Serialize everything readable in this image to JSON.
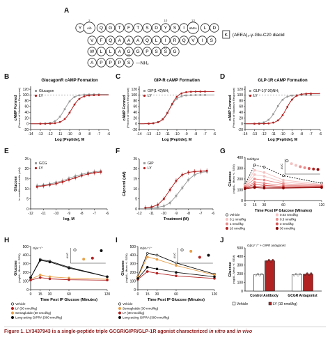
{
  "colors": {
    "red": "#b22222",
    "gray": "#9a9a9a",
    "orange": "#e8a04a",
    "pink1": "#f4c1c1",
    "pink2": "#e98a8a",
    "pink3": "#d65454",
    "darkred": "#8b0000",
    "black": "#111111",
    "green": "#5a8a3a"
  },
  "panels": {
    "A": {
      "letter": "A",
      "seq_row1": [
        "Y",
        "Aib",
        "Q",
        "G",
        "T",
        "F",
        "T",
        "S",
        "D",
        "Y",
        "S",
        "I",
        "αMeL",
        "L",
        "D"
      ],
      "seq_row2": [
        "S",
        "I",
        "V",
        "Q",
        "R",
        "I",
        "L",
        "Q",
        "A",
        "A",
        "A",
        "Q",
        "F",
        "V"
      ],
      "seq_row3": [
        "W",
        "L",
        "L",
        "A",
        "G",
        "G",
        "P",
        "S",
        "S",
        "G"
      ],
      "seq_row4": [
        "A",
        "P",
        "P",
        "P",
        "S"
      ],
      "lys_label": "K",
      "side_chain": "(AEEA)₂-γ-Glu-C20 diacid",
      "nh2": "NH₂",
      "positions": [
        "2",
        "10",
        "13",
        "20",
        "30",
        "39"
      ]
    },
    "B": {
      "letter": "B",
      "title": "GlucagonR cAMP Formation"
    },
    "C": {
      "letter": "C",
      "title": "GIP-R cAMP Formation"
    },
    "D": {
      "letter": "D",
      "title": "GLP-1R cAMP Formation"
    },
    "E": {
      "letter": "E"
    },
    "F": {
      "letter": "F"
    },
    "G": {
      "letter": "G",
      "inset_label": "Wildtype"
    },
    "H": {
      "letter": "H",
      "inset_label": "Gipr⁻/⁻"
    },
    "I": {
      "letter": "I",
      "inset_label": "Glp1r⁻/⁻"
    },
    "J": {
      "letter": "J",
      "inset_label": "Glp1r⁻/⁻ + GIPR antagonist"
    }
  },
  "legends": {
    "G": [
      "Vehicle",
      "0.03 nmol/kg",
      "0.1 nmol/kg",
      "0.3 nmol/kg",
      "1 nmol/kg",
      "3 nmol/kg",
      "10 nmol/kg",
      "30 nmol/kg"
    ],
    "H": [
      "Vehicle",
      "LY (30 nmol/kg)",
      "Semaglutide (30 nmol/kg)",
      "Long-acting GIPRA (300 nmol/kg)"
    ],
    "I": [
      "Vehicle",
      "Semaglutide (30 nmol/kg)",
      "LY (30 nmol/kg)",
      "Long-acting GIPRA (300 nmol/kg)"
    ],
    "J": [
      "Vehicle",
      "LY (10 nmol/kg)"
    ]
  },
  "caption": {
    "prefix": "Figure 1.",
    "text": "LY3437943 is a single-peptide triple GCGR/GIPR/GLP-1R agonist characterized",
    "in_vitro": "in vitro",
    "and": "and",
    "in_vivo": "in vivo"
  },
  "chart_data": [
    {
      "panel": "B",
      "type": "line",
      "title": "GlucagonR cAMP Formation",
      "xlabel": "Log [Peptide], M",
      "ylabel": "cAMP Formed",
      "ylabel2": "(Percent of Maximum Response)",
      "xlim": [
        -14,
        -6
      ],
      "ylim": [
        -20,
        130
      ],
      "xticks": [
        "-14",
        "-13",
        "-12",
        "-11",
        "-10",
        "-9",
        "-8",
        "-7",
        "-6"
      ],
      "yticks": [
        "-20",
        "0",
        "20",
        "40",
        "60",
        "80",
        "100",
        "120"
      ],
      "dashed_line": 100,
      "series": [
        {
          "name": "Glucagon",
          "color": "gray",
          "ec50": -10.5,
          "hill": 1.0,
          "top": 102
        },
        {
          "name": "LY",
          "color": "red",
          "ec50": -9.8,
          "hill": 1.0,
          "top": 100
        }
      ]
    },
    {
      "panel": "C",
      "type": "line",
      "title": "GIP-R cAMP Formation",
      "xlabel": "Log [Peptide], M",
      "ylabel": "cAMP Formed",
      "ylabel2": "(Percent of Maximum Response)",
      "xlim": [
        -14,
        -6
      ],
      "ylim": [
        -20,
        130
      ],
      "xticks": [
        "-14",
        "-13",
        "-12",
        "-11",
        "-10",
        "-9",
        "-8",
        "-7",
        "-6"
      ],
      "yticks": [
        "-20",
        "0",
        "20",
        "40",
        "60",
        "80",
        "100",
        "120"
      ],
      "dashed_line": 100,
      "series": [
        {
          "name": "GIP(1-42)NH₂",
          "color": "gray",
          "ec50": -10.8,
          "hill": 1.0,
          "top": 100
        },
        {
          "name": "LY",
          "color": "red",
          "ec50": -10.7,
          "hill": 1.0,
          "top": 112
        }
      ]
    },
    {
      "panel": "D",
      "type": "line",
      "title": "GLP-1R cAMP Formation",
      "xlabel": "Log [Peptide], M",
      "ylabel": "cAMP Formed",
      "ylabel2": "(Percent of Maximum Response)",
      "xlim": [
        -14,
        -6
      ],
      "ylim": [
        -20,
        130
      ],
      "xticks": [
        "-14",
        "-13",
        "-12",
        "-11",
        "-10",
        "-9",
        "-8",
        "-7",
        "-6"
      ],
      "yticks": [
        "-20",
        "0",
        "20",
        "40",
        "60",
        "80",
        "100",
        "120"
      ],
      "dashed_line": 100,
      "series": [
        {
          "name": "GLP-1(7-36)NH₂",
          "color": "gray",
          "ec50": -10.7,
          "hill": 1.0,
          "top": 100
        },
        {
          "name": "LY",
          "color": "red",
          "ec50": -9.6,
          "hill": 1.0,
          "top": 105
        }
      ]
    },
    {
      "panel": "E",
      "type": "line",
      "xlabel": "log, M",
      "ylabel": "Glucose",
      "ylabel2": "in conditioned media (mM)",
      "xlim": [
        -12,
        -6
      ],
      "ylim": [
        0,
        25
      ],
      "xticks": [
        "-12",
        "-11",
        "-10",
        "-9",
        "-8",
        "-7",
        "-6"
      ],
      "yticks": [
        "0",
        "5",
        "10",
        "15",
        "20",
        "25"
      ],
      "series": [
        {
          "name": "GCG",
          "color": "gray",
          "x": [
            -11.5,
            -11,
            -10.5,
            -10,
            -9.5,
            -9,
            -8.5,
            -8,
            -7.5,
            -7,
            -6.5
          ],
          "y": [
            11.5,
            11.8,
            12.4,
            13.2,
            14.0,
            15.2,
            16.3,
            17.2,
            18.0,
            18.5,
            18.8
          ]
        },
        {
          "name": "LY",
          "color": "red",
          "x": [
            -11.5,
            -11,
            -10.5,
            -10,
            -9.5,
            -9,
            -8.5,
            -8,
            -7.5,
            -7,
            -6.5
          ],
          "y": [
            11.0,
            11.5,
            12.0,
            12.6,
            13.4,
            14.5,
            15.5,
            16.6,
            17.4,
            18.0,
            18.4
          ]
        }
      ]
    },
    {
      "panel": "F",
      "type": "line",
      "xlabel": "Treatment (M)",
      "ylabel": "Glycerol (uM)",
      "xlim": [
        -12,
        -6
      ],
      "ylim": [
        0,
        25
      ],
      "xticks": [
        "-12",
        "-11",
        "-10",
        "-9",
        "-8",
        "-7",
        "-6"
      ],
      "yticks": [
        "0",
        "5",
        "10",
        "15",
        "20",
        "25"
      ],
      "series": [
        {
          "name": "GIP",
          "color": "gray",
          "x": [
            -11.5,
            -11,
            -10.5,
            -10,
            -9.5,
            -9,
            -8.5,
            -8,
            -7.5,
            -7,
            -6.5
          ],
          "y": [
            0.5,
            0.6,
            0.8,
            1.4,
            3.0,
            6.5,
            10.5,
            14.5,
            17.0,
            18.2,
            18.6
          ]
        },
        {
          "name": "LY",
          "color": "red",
          "x": [
            -11.5,
            -11,
            -10.5,
            -10,
            -9.5,
            -9,
            -8.5,
            -8,
            -7.5,
            -7,
            -6.5
          ],
          "y": [
            0.5,
            0.9,
            2.0,
            5.0,
            9.5,
            14.0,
            17.0,
            18.2,
            18.6,
            18.8,
            19.0
          ]
        }
      ]
    },
    {
      "panel": "G",
      "type": "line",
      "xlabel": "Time Post IP Glucose (Minutes)",
      "ylabel": "Glucose",
      "ylabel2": "(mg/dL, Mean +/- SEM)",
      "xlim": [
        0,
        120
      ],
      "ylim": [
        0,
        400
      ],
      "xticks": [
        "0",
        "15",
        "30",
        "60",
        "120"
      ],
      "yticks": [
        "0",
        "100",
        "200",
        "300",
        "400"
      ],
      "inset_ylabel": "AUC",
      "series": [
        {
          "name": "Vehicle",
          "color": "black",
          "x": [
            0,
            15,
            30,
            60,
            120
          ],
          "y": [
            150,
            330,
            310,
            230,
            160
          ],
          "dashed": true
        },
        {
          "name": "0.03 nmol/kg",
          "color": "pink1",
          "x": [
            0,
            15,
            30,
            60,
            120
          ],
          "y": [
            140,
            280,
            260,
            190,
            150
          ]
        },
        {
          "name": "0.1 nmol/kg",
          "color": "pink1",
          "x": [
            0,
            15,
            30,
            60,
            120
          ],
          "y": [
            135,
            240,
            225,
            170,
            145
          ]
        },
        {
          "name": "0.3 nmol/kg",
          "color": "pink2",
          "x": [
            0,
            15,
            30,
            60,
            120
          ],
          "y": [
            130,
            200,
            190,
            155,
            140
          ]
        },
        {
          "name": "1 nmol/kg",
          "color": "pink2",
          "x": [
            0,
            15,
            30,
            60,
            120
          ],
          "y": [
            125,
            170,
            160,
            140,
            135
          ]
        },
        {
          "name": "3 nmol/kg",
          "color": "pink3",
          "x": [
            0,
            15,
            30,
            60,
            120
          ],
          "y": [
            120,
            150,
            140,
            130,
            130
          ]
        },
        {
          "name": "10 nmol/kg",
          "color": "red",
          "x": [
            0,
            15,
            30,
            60,
            120
          ],
          "y": [
            115,
            130,
            125,
            120,
            125
          ]
        },
        {
          "name": "30 nmol/kg",
          "color": "darkred",
          "x": [
            0,
            15,
            30,
            60,
            120
          ],
          "y": [
            110,
            120,
            115,
            115,
            120
          ]
        }
      ],
      "inset_values": [
        1.0,
        0.78,
        0.66,
        0.56,
        0.48,
        0.42,
        0.38,
        0.35
      ]
    },
    {
      "panel": "H",
      "type": "line",
      "xlabel": "Time Post IP Glucose (Minutes)",
      "ylabel": "Glucose",
      "ylabel2": "(mg/dL, Mean +/- SEM)",
      "xlim": [
        0,
        120
      ],
      "ylim": [
        0,
        500
      ],
      "xticks": [
        "0",
        "15",
        "30",
        "60",
        "120"
      ],
      "yticks": [
        "0",
        "100",
        "200",
        "300",
        "400",
        "500"
      ],
      "inset_ylabel": "AUC",
      "series": [
        {
          "name": "Vehicle",
          "color": "black",
          "x": [
            0,
            15,
            30,
            60,
            120
          ],
          "y": [
            140,
            350,
            330,
            260,
            150
          ]
        },
        {
          "name": "Semaglutide (30 nmol/kg)",
          "color": "orange",
          "x": [
            0,
            15,
            30,
            60,
            120
          ],
          "y": [
            120,
            170,
            150,
            135,
            120
          ]
        },
        {
          "name": "LY (30 nmol/kg)",
          "color": "red",
          "x": [
            0,
            15,
            30,
            60,
            120
          ],
          "y": [
            110,
            140,
            125,
            115,
            110
          ]
        },
        {
          "name": "Long-acting GIPRA (300 nmol/kg)",
          "color": "black",
          "x": [
            0,
            15,
            30,
            60,
            120
          ],
          "y": [
            140,
            340,
            320,
            250,
            150
          ]
        }
      ],
      "inset_values": [
        1.0,
        0.3,
        0.38,
        0.95
      ]
    },
    {
      "panel": "I",
      "type": "line",
      "xlabel": "Time Post IP Glucose (Minutes)",
      "ylabel": "Glucose",
      "ylabel2": "(mg/dL, Mean +/- SEM)",
      "xlim": [
        0,
        120
      ],
      "ylim": [
        0,
        500
      ],
      "xticks": [
        "0",
        "15",
        "30",
        "60",
        "120"
      ],
      "yticks": [
        "0",
        "100",
        "200",
        "300",
        "400",
        "500"
      ],
      "inset_ylabel": "AUC",
      "series": [
        {
          "name": "Vehicle",
          "color": "black",
          "x": [
            0,
            15,
            30,
            60,
            120
          ],
          "y": [
            150,
            420,
            400,
            310,
            180
          ]
        },
        {
          "name": "Semaglutide (30 nmol/kg)",
          "color": "orange",
          "x": [
            0,
            15,
            30,
            60,
            120
          ],
          "y": [
            145,
            380,
            350,
            280,
            170
          ]
        },
        {
          "name": "LY (30 nmol/kg)",
          "color": "red",
          "x": [
            0,
            15,
            30,
            60,
            120
          ],
          "y": [
            120,
            210,
            190,
            160,
            130
          ]
        },
        {
          "name": "Long-acting GIPRA (300 nmol/kg)",
          "color": "black",
          "x": [
            0,
            15,
            30,
            60,
            120
          ],
          "y": [
            130,
            260,
            240,
            200,
            150
          ]
        }
      ],
      "inset_values": [
        1.0,
        0.9,
        0.45,
        0.6
      ]
    },
    {
      "panel": "J",
      "type": "bar",
      "ylabel": "Glucose",
      "ylabel2": "(mg/dL, Mean +/- SEM)",
      "ylim": [
        0,
        500
      ],
      "yticks": [
        "0",
        "100",
        "200",
        "300",
        "400",
        "500"
      ],
      "categories": [
        "Control Antibody",
        "GCGR Antagonist"
      ],
      "series": [
        {
          "name": "Vehicle",
          "color": "white",
          "values": [
            190,
            190
          ]
        },
        {
          "name": "LY (10 nmol/kg)",
          "color": "red",
          "values": [
            350,
            195
          ]
        }
      ]
    }
  ]
}
